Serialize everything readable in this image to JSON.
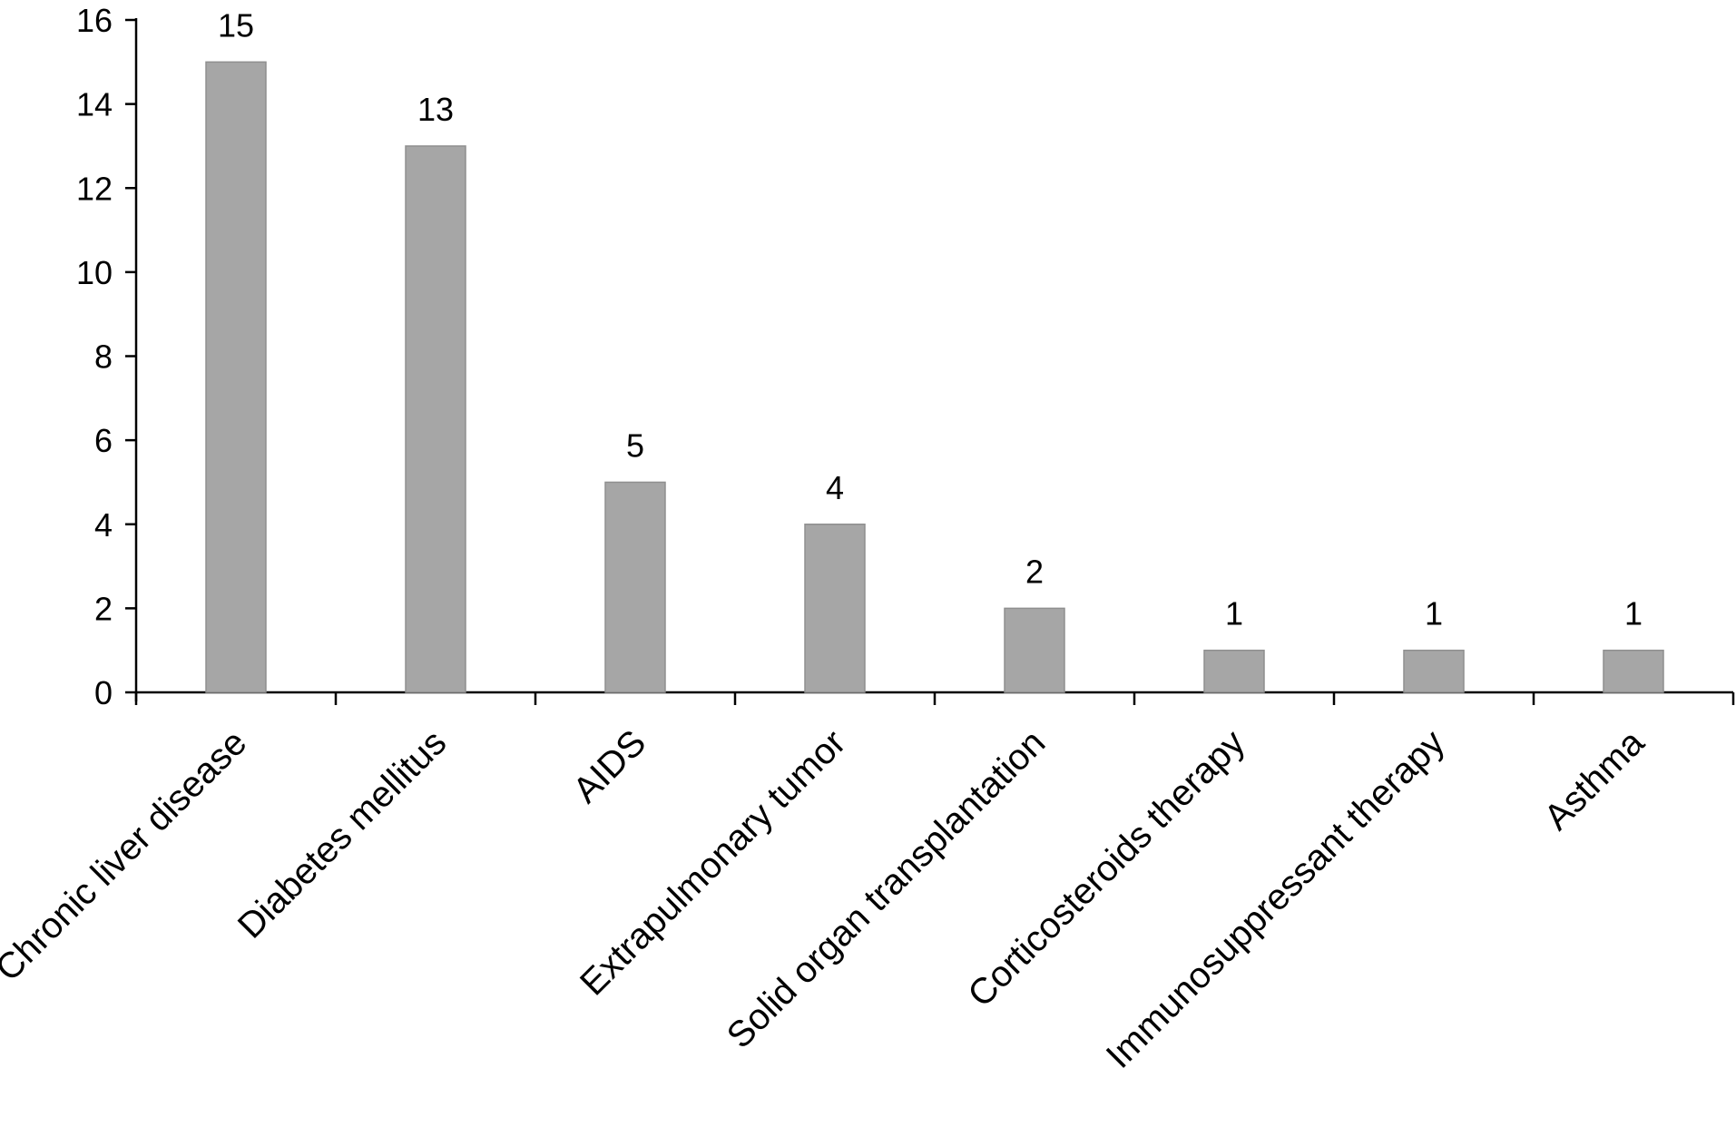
{
  "chart_data": {
    "type": "bar",
    "title": "",
    "xlabel": "",
    "ylabel": "",
    "categories": [
      "Chronic liver disease",
      "Diabetes mellitus",
      "AIDS",
      "Extrapulmonary tumor",
      "Solid organ transplantation",
      "Corticosteroids therapy",
      "Immunosuppressant therapy",
      "Asthma"
    ],
    "values": [
      15,
      13,
      5,
      4,
      2,
      1,
      1,
      1
    ],
    "data_labels": [
      "15",
      "13",
      "5",
      "4",
      "2",
      "1",
      "1",
      "1"
    ],
    "ylim": [
      0,
      16
    ],
    "yticks": [
      0,
      2,
      4,
      6,
      8,
      10,
      12,
      14,
      16
    ],
    "grid": false,
    "legend": "none",
    "bar_color": "#a6a6a6",
    "bar_edge_color": "#8f8f8f",
    "axis_color": "#000000"
  }
}
